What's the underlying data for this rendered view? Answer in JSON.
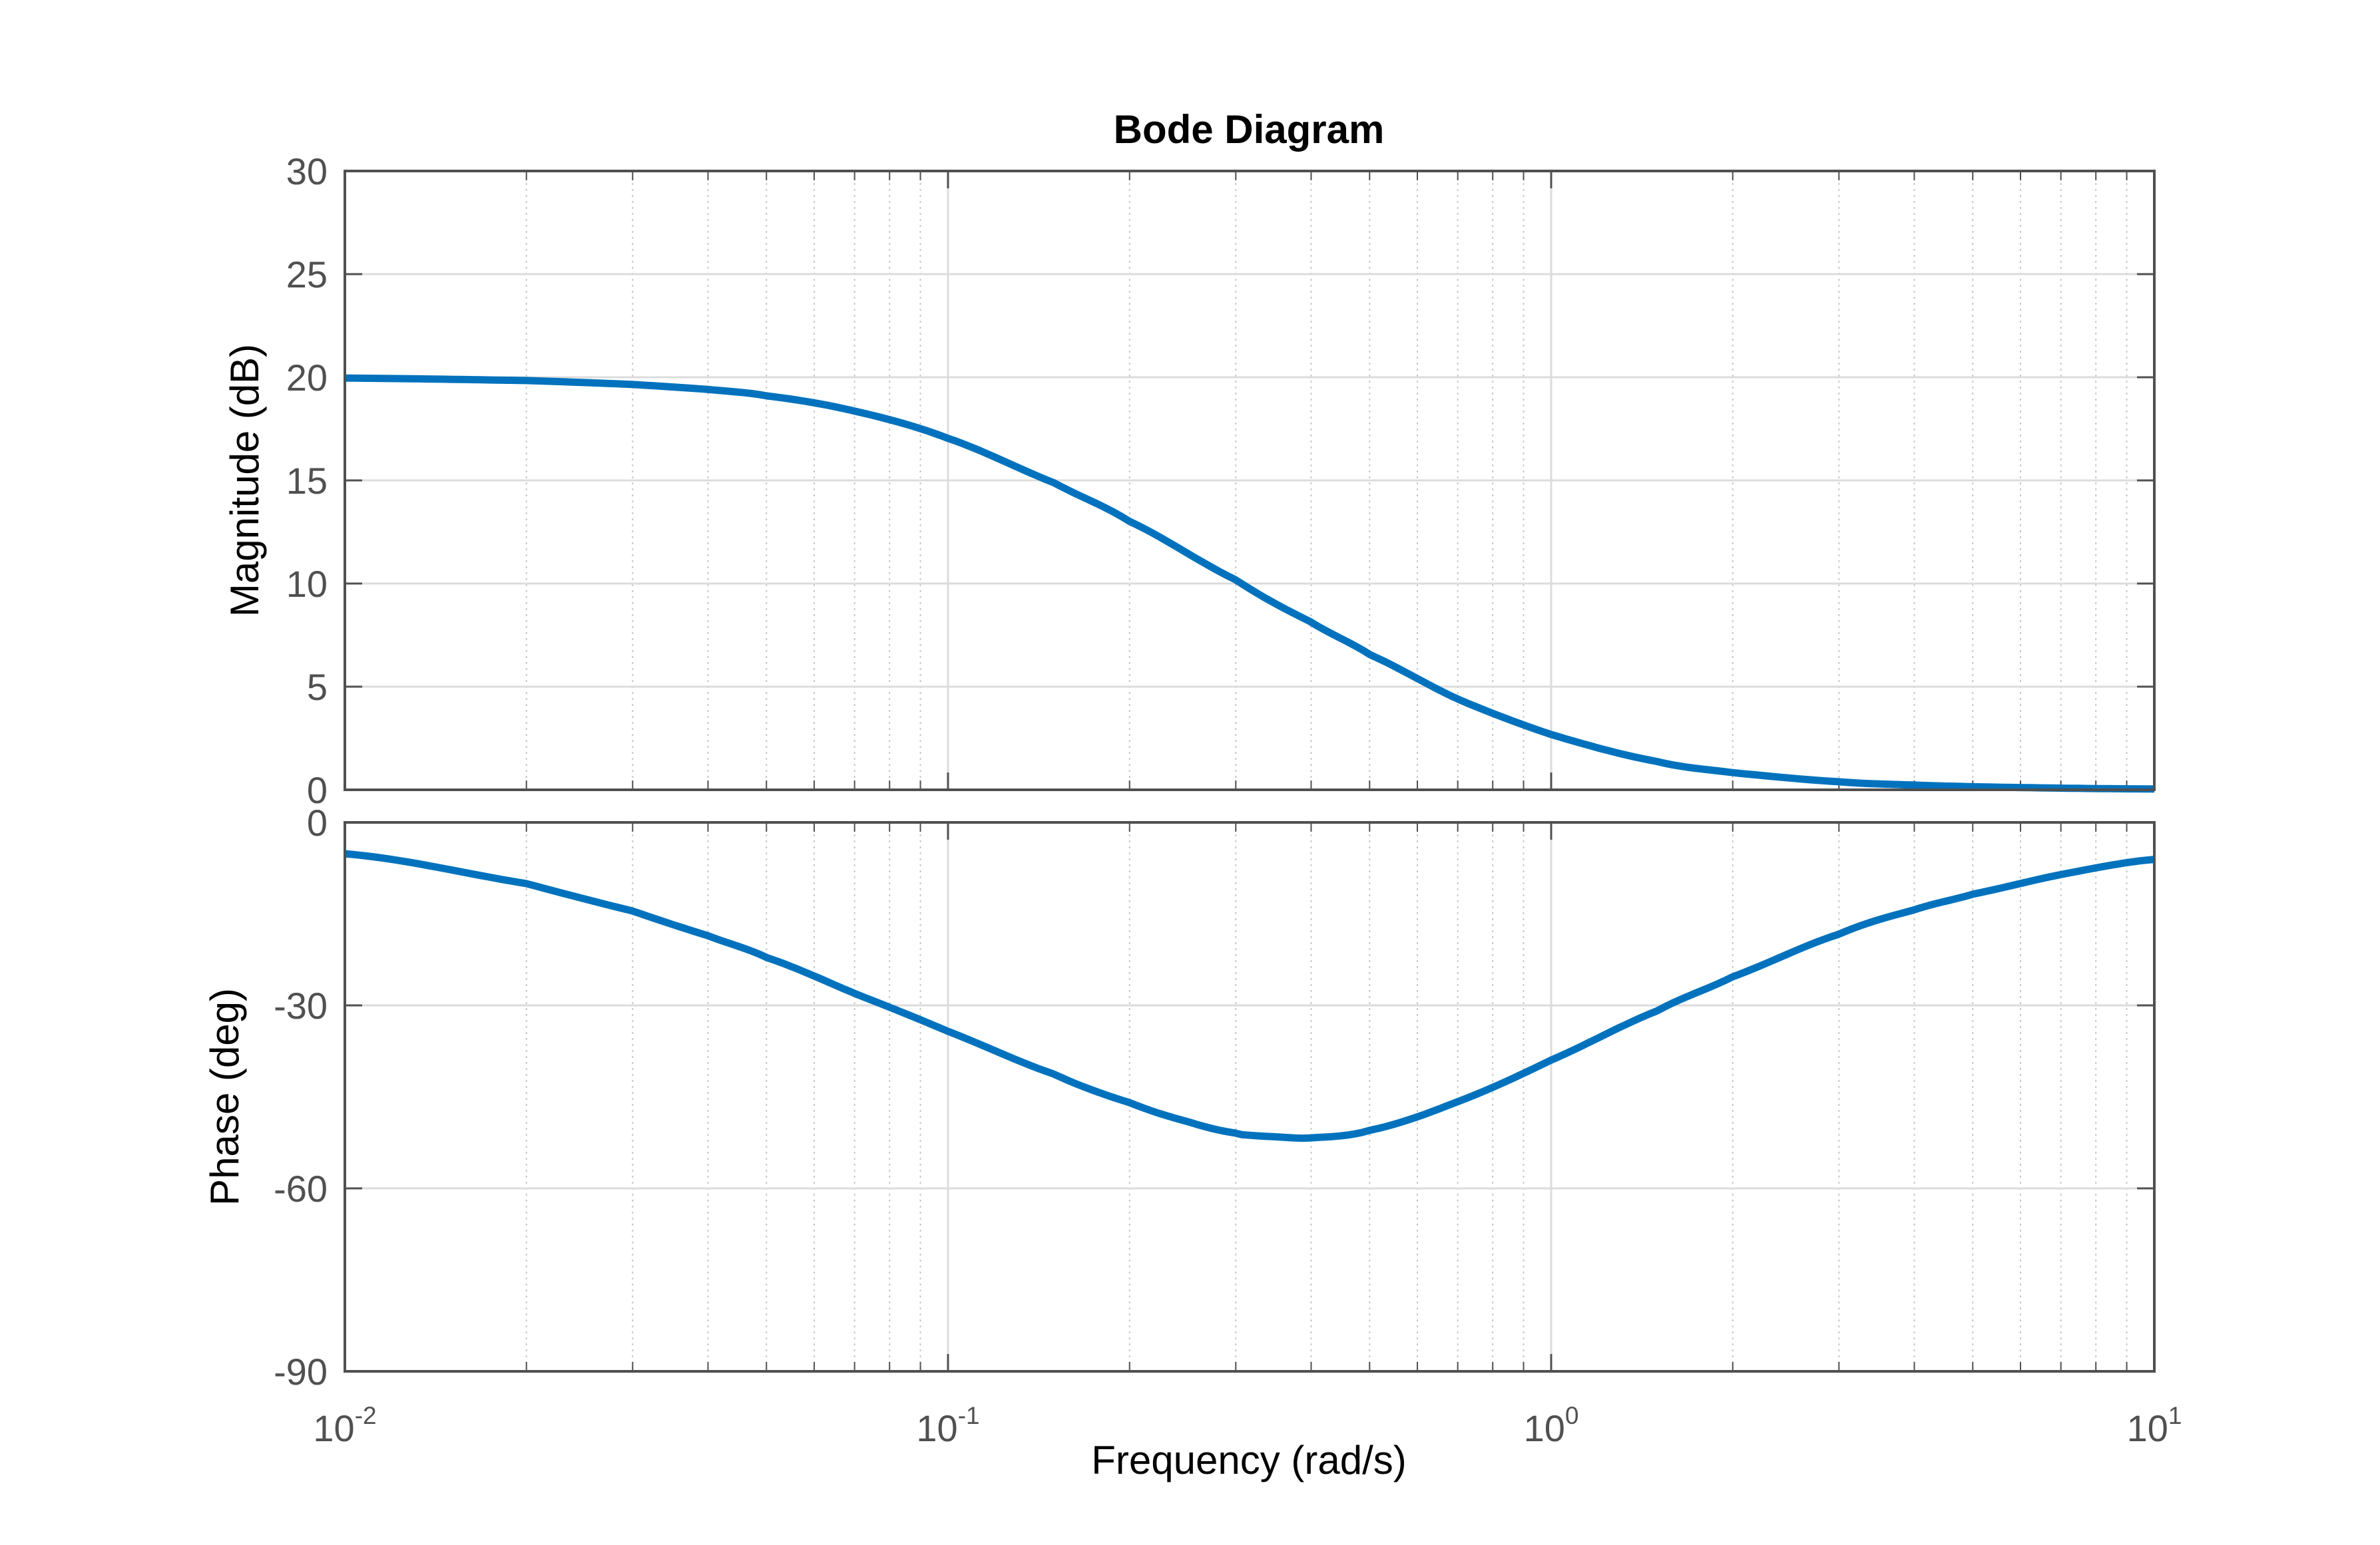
{
  "colors": {
    "line": "#0072BD",
    "axis": "#505050",
    "grid_major": "#dcdcdc",
    "grid_minor": "#c8c8c8",
    "background": "#ffffff"
  },
  "chart_data": {
    "type": "line",
    "title": "Bode Diagram",
    "xlabel": "Frequency  (rad/s)",
    "xscale": "log",
    "xlim": [
      0.01,
      10
    ],
    "xticks": [
      {
        "base": "10",
        "exp": "-2",
        "value": 0.01
      },
      {
        "base": "10",
        "exp": "-1",
        "value": 0.1
      },
      {
        "base": "10",
        "exp": "0",
        "value": 1
      },
      {
        "base": "10",
        "exp": "1",
        "value": 10
      }
    ],
    "grid": true,
    "minor_grid": true,
    "panels": [
      {
        "name": "magnitude",
        "ylabel": "Magnitude (dB)",
        "ylim": [
          0,
          30
        ],
        "yticks": [
          0,
          5,
          10,
          15,
          20,
          25,
          30
        ],
        "x": [
          0.01,
          0.02,
          0.03,
          0.04,
          0.05,
          0.07,
          0.1,
          0.15,
          0.2,
          0.3,
          0.4,
          0.5,
          0.7,
          1,
          1.5,
          2,
          3,
          4,
          5,
          7,
          10
        ],
        "y": [
          19.96,
          19.84,
          19.65,
          19.41,
          19.1,
          18.36,
          17.04,
          14.88,
          13.01,
          10.18,
          8.13,
          6.56,
          4.4,
          2.68,
          1.37,
          0.83,
          0.39,
          0.23,
          0.15,
          0.08,
          0.04
        ]
      },
      {
        "name": "phase",
        "ylabel": "Phase (deg)",
        "ylim": [
          -90,
          0
        ],
        "yticks": [
          -90,
          -60,
          -30,
          0
        ],
        "x": [
          0.01,
          0.02,
          0.03,
          0.04,
          0.05,
          0.07,
          0.1,
          0.15,
          0.2,
          0.25,
          0.3,
          0.316,
          0.35,
          0.4,
          0.5,
          0.7,
          1,
          1.5,
          2,
          3,
          4,
          5,
          7,
          10
        ],
        "y": [
          -5.14,
          -10.03,
          -14.53,
          -18.58,
          -22.15,
          -28.04,
          -34.26,
          -41.28,
          -45.95,
          -49.07,
          -50.94,
          -51.29,
          -51.56,
          -51.71,
          -50.49,
          -45.78,
          -38.97,
          -30.88,
          -25.3,
          -18.33,
          -14.34,
          -11.77,
          -8.55,
          -6.07
        ]
      }
    ]
  }
}
